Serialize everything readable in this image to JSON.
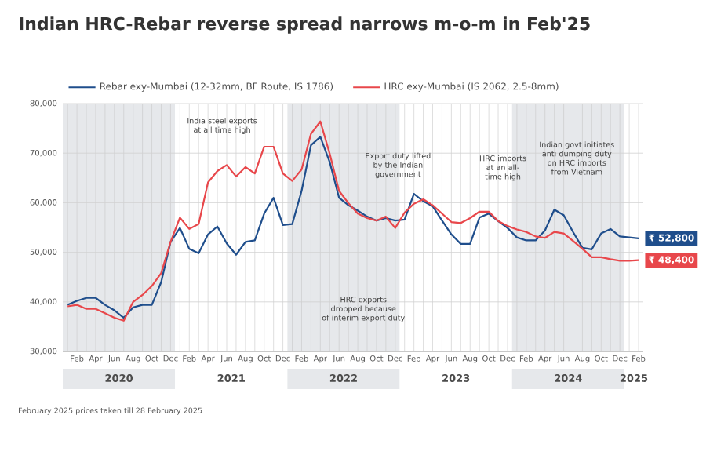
{
  "chart_data": {
    "type": "line",
    "title": "Indian HRC-Rebar reverse spread narrows m-o-m in Feb'25",
    "x": [
      "2020-01",
      "2020-02",
      "2020-03",
      "2020-04",
      "2020-05",
      "2020-06",
      "2020-07",
      "2020-08",
      "2020-09",
      "2020-10",
      "2020-11",
      "2020-12",
      "2021-01",
      "2021-02",
      "2021-03",
      "2021-04",
      "2021-05",
      "2021-06",
      "2021-07",
      "2021-08",
      "2021-09",
      "2021-10",
      "2021-11",
      "2021-12",
      "2022-01",
      "2022-02",
      "2022-03",
      "2022-04",
      "2022-05",
      "2022-06",
      "2022-07",
      "2022-08",
      "2022-09",
      "2022-10",
      "2022-11",
      "2022-12",
      "2023-01",
      "2023-02",
      "2023-03",
      "2023-04",
      "2023-05",
      "2023-06",
      "2023-07",
      "2023-08",
      "2023-09",
      "2023-10",
      "2023-11",
      "2023-12",
      "2024-01",
      "2024-02",
      "2024-03",
      "2024-04",
      "2024-05",
      "2024-06",
      "2024-07",
      "2024-08",
      "2024-09",
      "2024-10",
      "2024-11",
      "2024-12",
      "2025-01",
      "2025-02"
    ],
    "series": [
      {
        "name": "Rebar exy-Mumbai (12-32mm, BF Route, IS 1786)",
        "color": "#1f4e8c",
        "values": [
          39400,
          40200,
          40800,
          40800,
          39400,
          38300,
          36800,
          38900,
          39400,
          39400,
          44000,
          52100,
          54900,
          50700,
          49800,
          53600,
          55200,
          51800,
          49500,
          52100,
          52400,
          57800,
          61000,
          55500,
          55700,
          62400,
          71600,
          73300,
          68200,
          61000,
          59500,
          58400,
          57200,
          56400,
          56900,
          56400,
          56600,
          61800,
          60300,
          59300,
          56400,
          53600,
          51700,
          51700,
          57000,
          57800,
          56300,
          54900,
          53000,
          52400,
          52400,
          54400,
          58600,
          57500,
          54100,
          50900,
          50600,
          53800,
          54700,
          53200,
          53000,
          52800
        ],
        "value_labels": [
          null,
          null,
          null,
          null,
          null,
          null,
          null,
          null,
          null,
          null,
          null,
          null,
          null,
          null,
          null,
          null,
          null,
          null,
          null,
          null,
          null,
          null,
          null,
          null,
          null,
          null,
          null,
          null,
          null,
          null,
          null,
          null,
          null,
          null,
          null,
          null,
          null,
          null,
          null,
          null,
          null,
          null,
          null,
          null,
          null,
          null,
          null,
          null,
          null,
          null,
          null,
          null,
          null,
          null,
          null,
          null,
          null,
          null,
          null,
          null,
          null,
          "₹ 52,800"
        ]
      },
      {
        "name": "HRC exy-Mumbai (IS 2062, 2.5-8mm)",
        "color": "#e8474b",
        "values": [
          39100,
          39400,
          38600,
          38600,
          37700,
          36800,
          36200,
          40000,
          41400,
          43200,
          45800,
          52100,
          57000,
          54700,
          55700,
          64100,
          66400,
          67600,
          65300,
          67200,
          65900,
          71300,
          71300,
          65900,
          64400,
          66700,
          73900,
          76400,
          69900,
          62400,
          59900,
          57800,
          56900,
          56400,
          57200,
          54900,
          58000,
          59800,
          60700,
          59500,
          57800,
          56100,
          55900,
          56900,
          58200,
          58200,
          56300,
          55300,
          54600,
          54100,
          53200,
          52900,
          54100,
          53800,
          52300,
          50700,
          49000,
          49000,
          48600,
          48300,
          48300,
          48400
        ],
        "value_labels": [
          null,
          null,
          null,
          null,
          null,
          null,
          null,
          null,
          null,
          null,
          null,
          null,
          null,
          null,
          null,
          null,
          null,
          null,
          null,
          null,
          null,
          null,
          null,
          null,
          null,
          null,
          null,
          null,
          null,
          null,
          null,
          null,
          null,
          null,
          null,
          null,
          null,
          null,
          null,
          null,
          null,
          null,
          null,
          null,
          null,
          null,
          null,
          null,
          null,
          null,
          null,
          null,
          null,
          null,
          null,
          null,
          null,
          null,
          null,
          null,
          null,
          "₹ 48,400"
        ]
      }
    ],
    "xlim": [
      "2019-12-16",
      "2025-02-15"
    ],
    "xticks": [
      {
        "value": "2020-01",
        "label": null
      },
      {
        "value": "2020-02",
        "label": "Feb"
      },
      {
        "value": "2020-03",
        "label": null
      },
      {
        "value": "2020-04",
        "label": "Apr"
      },
      {
        "value": "2020-05",
        "label": null
      },
      {
        "value": "2020-06",
        "label": "Jun"
      },
      {
        "value": "2020-07",
        "label": null
      },
      {
        "value": "2020-08",
        "label": "Aug"
      },
      {
        "value": "2020-09",
        "label": null
      },
      {
        "value": "2020-10",
        "label": "Oct"
      },
      {
        "value": "2020-11",
        "label": null
      },
      {
        "value": "2020-12",
        "label": "Dec"
      },
      {
        "value": "2021-01",
        "label": null
      },
      {
        "value": "2021-02",
        "label": "Feb"
      },
      {
        "value": "2021-03",
        "label": null
      },
      {
        "value": "2021-04",
        "label": "Apr"
      },
      {
        "value": "2021-05",
        "label": null
      },
      {
        "value": "2021-06",
        "label": "Jun"
      },
      {
        "value": "2021-07",
        "label": null
      },
      {
        "value": "2021-08",
        "label": "Aug"
      },
      {
        "value": "2021-09",
        "label": null
      },
      {
        "value": "2021-10",
        "label": "Oct"
      },
      {
        "value": "2021-11",
        "label": null
      },
      {
        "value": "2021-12",
        "label": "Dec"
      },
      {
        "value": "2022-01",
        "label": null
      },
      {
        "value": "2022-02",
        "label": "Feb"
      },
      {
        "value": "2022-03",
        "label": null
      },
      {
        "value": "2022-04",
        "label": "Apr"
      },
      {
        "value": "2022-05",
        "label": null
      },
      {
        "value": "2022-06",
        "label": "Jun"
      },
      {
        "value": "2022-07",
        "label": null
      },
      {
        "value": "2022-08",
        "label": "Aug"
      },
      {
        "value": "2022-09",
        "label": null
      },
      {
        "value": "2022-10",
        "label": "Oct"
      },
      {
        "value": "2022-11",
        "label": null
      },
      {
        "value": "2022-12",
        "label": "Dec"
      },
      {
        "value": "2023-01",
        "label": null
      },
      {
        "value": "2023-02",
        "label": "Feb"
      },
      {
        "value": "2023-03",
        "label": null
      },
      {
        "value": "2023-04",
        "label": "Apr"
      },
      {
        "value": "2023-05",
        "label": null
      },
      {
        "value": "2023-06",
        "label": "Jun"
      },
      {
        "value": "2023-07",
        "label": null
      },
      {
        "value": "2023-08",
        "label": "Aug"
      },
      {
        "value": "2023-09",
        "label": null
      },
      {
        "value": "2023-10",
        "label": "Oct"
      },
      {
        "value": "2023-11",
        "label": null
      },
      {
        "value": "2023-12",
        "label": "Dec"
      },
      {
        "value": "2024-01",
        "label": null
      },
      {
        "value": "2024-02",
        "label": "Feb"
      },
      {
        "value": "2024-03",
        "label": null
      },
      {
        "value": "2024-04",
        "label": "Apr"
      },
      {
        "value": "2024-05",
        "label": null
      },
      {
        "value": "2024-06",
        "label": "Jun"
      },
      {
        "value": "2024-07",
        "label": null
      },
      {
        "value": "2024-08",
        "label": "Aug"
      },
      {
        "value": "2024-09",
        "label": null
      },
      {
        "value": "2024-10",
        "label": "Oct"
      },
      {
        "value": "2024-11",
        "label": null
      },
      {
        "value": "2024-12",
        "label": "Dec"
      },
      {
        "value": "2025-01",
        "label": null
      },
      {
        "value": "2025-02",
        "label": "Feb"
      }
    ],
    "ylim": [
      30000,
      80000
    ],
    "yticks": [
      {
        "value": 30000,
        "label": "30,000"
      },
      {
        "value": 40000,
        "label": "40,000"
      },
      {
        "value": 50000,
        "label": "50,000"
      },
      {
        "value": 60000,
        "label": "60,000"
      },
      {
        "value": 70000,
        "label": "70,000"
      },
      {
        "value": 80000,
        "label": "80,000"
      }
    ],
    "grid": true,
    "legend": "top",
    "bands": [
      {
        "axis": "x",
        "from": "2019-12-16",
        "to": "2020-12-16",
        "label": "2020",
        "color": "#e6e8eb"
      },
      {
        "axis": "x",
        "from": "2020-12-16",
        "to": "2021-12-16",
        "label": "2021",
        "color": "#ffffff"
      },
      {
        "axis": "x",
        "from": "2021-12-16",
        "to": "2022-12-16",
        "label": "2022",
        "color": "#e6e8eb"
      },
      {
        "axis": "x",
        "from": "2022-12-16",
        "to": "2023-12-16",
        "label": "2023",
        "color": "#ffffff"
      },
      {
        "axis": "x",
        "from": "2023-12-16",
        "to": "2024-12-16",
        "label": "2024",
        "color": "#e6e8eb"
      },
      {
        "axis": "x",
        "from": "2024-12-16",
        "to": "2025-02-15",
        "label": "2025",
        "color": "#ffffff"
      }
    ],
    "annotations": [
      "India steel exports at all time high",
      "Export duty lifted by the Indian government",
      "HRC exports dropped because of interim export duty",
      "HRC imports at an all-time high",
      "Indian govt initiates anti dumping duty on HRC imports from Vietnam",
      "February 2025 prices taken till 28 February 2025"
    ]
  }
}
